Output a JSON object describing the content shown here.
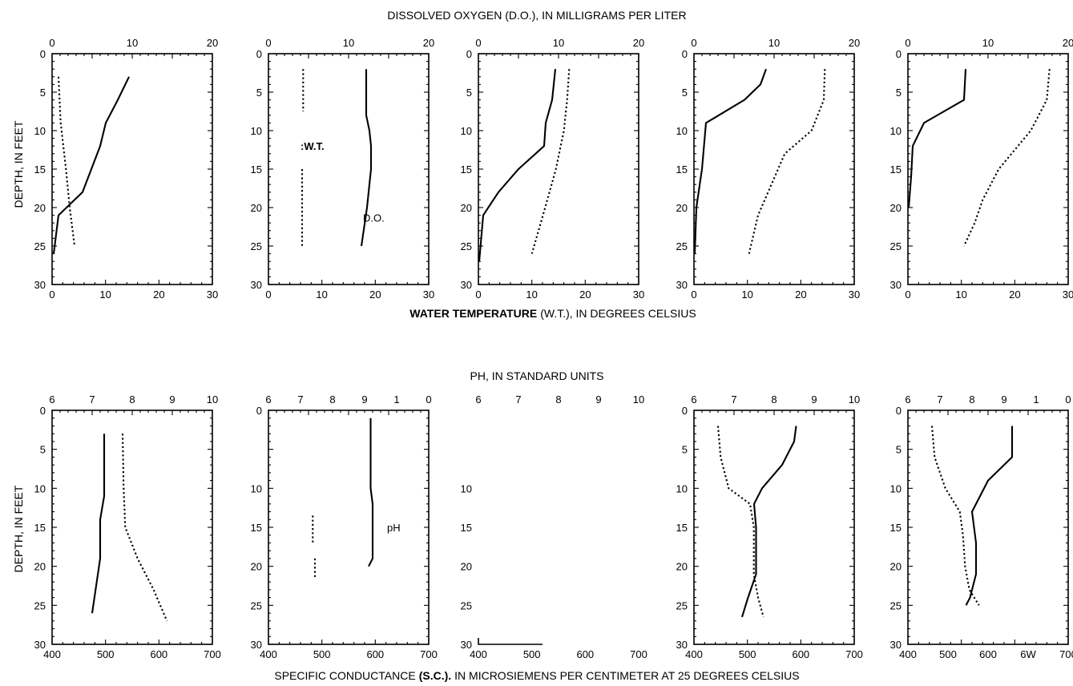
{
  "captions": {
    "do_title": "DISSOLVED OXYGEN (D.O.), IN MILLIGRAMS PER LITER",
    "wt_title_bold": "WATER TEMPERATURE",
    "wt_title_rest": "(W.T.), IN DEGREES CELSIUS",
    "ph_title": "PH, IN STANDARD UNITS",
    "sc_title_a": "SPECIFIC CONDUCTANCE",
    "sc_title_bold": "(S.C.).",
    "sc_title_b": "IN MICROSIEMENS PER CENTIMETER AT 25 DEGREES CELSIUS",
    "depth_label": "DEPTH, IN FEET"
  },
  "chart_data": [
    {
      "type": "line",
      "row": "top",
      "panel": 1,
      "ylabel": "DEPTH, IN FEET",
      "ylim": [
        0,
        30
      ],
      "y_inverted": true,
      "y_ticks": [
        "0",
        "5",
        "10",
        "15",
        "20",
        "25",
        "30"
      ],
      "top_axis": {
        "xlim": [
          0,
          20
        ],
        "ticks": [
          "0",
          "10",
          "20"
        ]
      },
      "bottom_axis": {
        "xlim": [
          0,
          30
        ],
        "ticks": [
          "0",
          "10",
          "20",
          "30"
        ]
      },
      "series": [
        {
          "style": "solid",
          "axis": "top",
          "points": [
            [
              9.6,
              3
            ],
            [
              8.2,
              6
            ],
            [
              6.7,
              9
            ],
            [
              6.0,
              12
            ],
            [
              3.8,
              18
            ],
            [
              0.8,
              21
            ],
            [
              0.2,
              26
            ]
          ]
        },
        {
          "style": "dotted",
          "axis": "bottom",
          "points": [
            [
              1.2,
              3
            ],
            [
              1.6,
              9
            ],
            [
              2.6,
              15
            ],
            [
              3.3,
              20
            ],
            [
              4.2,
              25
            ]
          ]
        }
      ]
    },
    {
      "type": "line",
      "row": "top",
      "panel": 2,
      "ylim": [
        0,
        30
      ],
      "y_inverted": true,
      "y_ticks": [
        "0",
        "5",
        "10",
        "15",
        "20",
        "25",
        "30"
      ],
      "top_axis": {
        "xlim": [
          0,
          20
        ],
        "ticks": [
          "0",
          "10",
          "20"
        ]
      },
      "bottom_axis": {
        "xlim": [
          0,
          30
        ],
        "ticks": [
          "0",
          "10",
          "20",
          "30"
        ]
      },
      "annotations": [
        ":W.T.",
        "D.O."
      ],
      "series": [
        {
          "style": "solid",
          "axis": "top",
          "points": [
            [
              12.2,
              2
            ],
            [
              12.2,
              8
            ],
            [
              12.6,
              10
            ],
            [
              12.8,
              12
            ],
            [
              12.8,
              15
            ],
            [
              12.3,
              20
            ],
            [
              11.6,
              25
            ]
          ]
        },
        {
          "style": "dotted",
          "axis": "bottom",
          "points": [
            [
              6.5,
              2
            ],
            [
              6.5,
              7.5
            ]
          ]
        },
        {
          "style": "dotted",
          "axis": "bottom",
          "points": [
            [
              6.3,
              15
            ],
            [
              6.3,
              25
            ]
          ]
        }
      ]
    },
    {
      "type": "line",
      "row": "top",
      "panel": 3,
      "ylim": [
        0,
        30
      ],
      "y_inverted": true,
      "y_ticks": [
        "0",
        "5",
        "10",
        "15",
        "20",
        "25",
        "30"
      ],
      "top_axis": {
        "xlim": [
          0,
          20
        ],
        "ticks": [
          "0",
          "10",
          "20"
        ]
      },
      "bottom_axis": {
        "xlim": [
          0,
          30
        ],
        "ticks": [
          "0",
          "10",
          "20",
          "30"
        ]
      },
      "series": [
        {
          "style": "solid",
          "axis": "top",
          "points": [
            [
              9.6,
              2
            ],
            [
              9.2,
              6
            ],
            [
              8.4,
              9
            ],
            [
              8.2,
              12
            ],
            [
              5.0,
              15
            ],
            [
              2.5,
              18
            ],
            [
              0.6,
              21
            ],
            [
              0.1,
              27
            ]
          ]
        },
        {
          "style": "dotted",
          "axis": "bottom",
          "points": [
            [
              17.0,
              2
            ],
            [
              16.6,
              6
            ],
            [
              16.0,
              10
            ],
            [
              14.5,
              15
            ],
            [
              12.5,
              20
            ],
            [
              10.0,
              26
            ]
          ]
        }
      ]
    },
    {
      "type": "line",
      "row": "top",
      "panel": 4,
      "ylim": [
        0,
        30
      ],
      "y_inverted": true,
      "y_ticks": [
        "0",
        "5",
        "10",
        "15",
        "20",
        "25",
        "30"
      ],
      "top_axis": {
        "xlim": [
          0,
          20
        ],
        "ticks": [
          "0",
          "10",
          "20"
        ]
      },
      "bottom_axis": {
        "xlim": [
          0,
          30
        ],
        "ticks": [
          "0",
          "10",
          "20",
          "30"
        ]
      },
      "series": [
        {
          "style": "solid",
          "axis": "top",
          "points": [
            [
              9.0,
              2
            ],
            [
              8.3,
              4
            ],
            [
              6.3,
              6
            ],
            [
              1.5,
              9
            ],
            [
              1.0,
              15
            ],
            [
              0.3,
              20
            ],
            [
              0.1,
              26
            ]
          ]
        },
        {
          "style": "dotted",
          "axis": "bottom",
          "points": [
            [
              24.5,
              2
            ],
            [
              24.3,
              6
            ],
            [
              22.0,
              10
            ],
            [
              17.0,
              13
            ],
            [
              14.5,
              17
            ],
            [
              12.0,
              21
            ],
            [
              10.3,
              26
            ]
          ]
        }
      ]
    },
    {
      "type": "line",
      "row": "top",
      "panel": 5,
      "ylim": [
        0,
        30
      ],
      "y_inverted": true,
      "y_ticks": [
        "0",
        "5",
        "10",
        "15",
        "20",
        "25",
        "30"
      ],
      "top_axis": {
        "xlim": [
          0,
          20
        ],
        "ticks": [
          "0",
          "10",
          "20"
        ]
      },
      "bottom_axis": {
        "xlim": [
          0,
          30
        ],
        "ticks": [
          "0",
          "10",
          "20",
          "30"
        ]
      },
      "series": [
        {
          "style": "solid",
          "axis": "top",
          "points": [
            [
              7.2,
              2
            ],
            [
              7.0,
              6
            ],
            [
              2.0,
              9
            ],
            [
              0.6,
              12
            ],
            [
              0.4,
              16
            ],
            [
              0.1,
              20
            ]
          ]
        },
        {
          "style": "dotted",
          "axis": "bottom",
          "points": [
            [
              26.5,
              2
            ],
            [
              26.0,
              6
            ],
            [
              23.0,
              10
            ],
            [
              17.0,
              15
            ],
            [
              14.0,
              19
            ],
            [
              12.5,
              22
            ],
            [
              10.5,
              25
            ]
          ]
        }
      ]
    },
    {
      "type": "line",
      "row": "bottom",
      "panel": 1,
      "ylabel": "DEPTH, IN FEET",
      "ylim": [
        0,
        30
      ],
      "y_inverted": true,
      "y_ticks": [
        "0",
        "5",
        "10",
        "15",
        "20",
        "25",
        "30"
      ],
      "top_axis": {
        "xlim": [
          6,
          10
        ],
        "ticks": [
          "6",
          "7",
          "8",
          "9",
          "10"
        ]
      },
      "bottom_axis": {
        "xlim": [
          400,
          700
        ],
        "ticks": [
          "400",
          "500",
          "600",
          "700"
        ]
      },
      "series": [
        {
          "style": "solid",
          "axis": "top",
          "points": [
            [
              7.3,
              3
            ],
            [
              7.3,
              11
            ],
            [
              7.2,
              14
            ],
            [
              7.2,
              19
            ],
            [
              7.0,
              26
            ]
          ]
        },
        {
          "style": "dotted",
          "axis": "bottom",
          "points": [
            [
              532,
              3
            ],
            [
              534,
              10
            ],
            [
              537,
              15
            ],
            [
              560,
              19
            ],
            [
              590,
              23
            ],
            [
              615,
              27
            ]
          ]
        }
      ]
    },
    {
      "type": "line",
      "row": "bottom",
      "panel": 2,
      "ylim": [
        0,
        30
      ],
      "y_inverted": true,
      "y_ticks": [
        "0",
        "",
        "10",
        "15",
        "20",
        "25",
        "30"
      ],
      "top_axis": {
        "xlim": [
          6,
          10
        ],
        "ticks": [
          "6",
          "7",
          "8",
          "9",
          "1",
          "0"
        ]
      },
      "bottom_axis": {
        "xlim": [
          400,
          700
        ],
        "ticks": [
          "400",
          "500",
          "600",
          "700"
        ]
      },
      "annotations": [
        "pH"
      ],
      "series": [
        {
          "style": "solid",
          "axis": "top",
          "points": [
            [
              8.55,
              1
            ],
            [
              8.55,
              10
            ],
            [
              8.6,
              12
            ],
            [
              8.6,
              19
            ],
            [
              8.5,
              20
            ]
          ]
        },
        {
          "style": "dotted",
          "axis": "bottom",
          "points": [
            [
              483,
              13.5
            ],
            [
              483,
              17
            ]
          ]
        },
        {
          "style": "dotted",
          "axis": "bottom",
          "points": [
            [
              487,
              19
            ],
            [
              487,
              21.5
            ]
          ]
        }
      ]
    },
    {
      "type": "line",
      "row": "bottom",
      "panel": 3,
      "ylim": [
        0,
        30
      ],
      "y_inverted": true,
      "y_ticks": [
        "",
        "",
        "10",
        "15",
        "20",
        "25",
        "30"
      ],
      "top_axis": {
        "xlim": [
          6,
          10
        ],
        "ticks": [
          "6",
          "7",
          "8",
          "9",
          "10"
        ]
      },
      "bottom_axis": {
        "xlim": [
          400,
          700
        ],
        "ticks": [
          "400",
          "500",
          "600",
          "700"
        ]
      },
      "series": []
    },
    {
      "type": "line",
      "row": "bottom",
      "panel": 4,
      "ylim": [
        0,
        30
      ],
      "y_inverted": true,
      "y_ticks": [
        "0",
        "5",
        "10",
        "15",
        "20",
        "25",
        "30"
      ],
      "top_axis": {
        "xlim": [
          6,
          10
        ],
        "ticks": [
          "6",
          "7",
          "8",
          "9",
          "10"
        ]
      },
      "bottom_axis": {
        "xlim": [
          400,
          700
        ],
        "ticks": [
          "400",
          "500",
          "600",
          "700"
        ]
      },
      "series": [
        {
          "style": "solid",
          "axis": "top",
          "points": [
            [
              8.55,
              2
            ],
            [
              8.5,
              4
            ],
            [
              8.2,
              7
            ],
            [
              7.7,
              10
            ],
            [
              7.5,
              12
            ],
            [
              7.55,
              15
            ],
            [
              7.55,
              21
            ],
            [
              7.35,
              24
            ],
            [
              7.2,
              26.5
            ]
          ]
        },
        {
          "style": "dotted",
          "axis": "bottom",
          "points": [
            [
              445,
              2
            ],
            [
              450,
              6
            ],
            [
              465,
              10
            ],
            [
              505,
              12
            ],
            [
              512,
              15
            ],
            [
              512,
              21
            ],
            [
              520,
              24
            ],
            [
              530,
              26.5
            ]
          ]
        }
      ]
    },
    {
      "type": "line",
      "row": "bottom",
      "panel": 5,
      "ylim": [
        0,
        30
      ],
      "y_inverted": true,
      "y_ticks": [
        "0",
        "5",
        "10",
        "15",
        "20",
        "25",
        "30"
      ],
      "top_axis": {
        "xlim": [
          6,
          10
        ],
        "ticks": [
          "6",
          "7",
          "8",
          "9",
          "1",
          "0"
        ]
      },
      "bottom_axis": {
        "xlim": [
          400,
          700
        ],
        "ticks": [
          "400",
          "500",
          "600",
          "6W",
          "700"
        ]
      },
      "series": [
        {
          "style": "solid",
          "axis": "top",
          "points": [
            [
              8.6,
              2
            ],
            [
              8.6,
              6
            ],
            [
              8.0,
              9
            ],
            [
              7.6,
              13
            ],
            [
              7.7,
              17
            ],
            [
              7.7,
              21
            ],
            [
              7.55,
              24
            ],
            [
              7.45,
              25
            ]
          ]
        },
        {
          "style": "dotted",
          "axis": "bottom",
          "points": [
            [
              445,
              2
            ],
            [
              450,
              6
            ],
            [
              470,
              10
            ],
            [
              497,
              13
            ],
            [
              503,
              16
            ],
            [
              507,
              20
            ],
            [
              515,
              23
            ],
            [
              533,
              25
            ]
          ]
        }
      ]
    }
  ]
}
